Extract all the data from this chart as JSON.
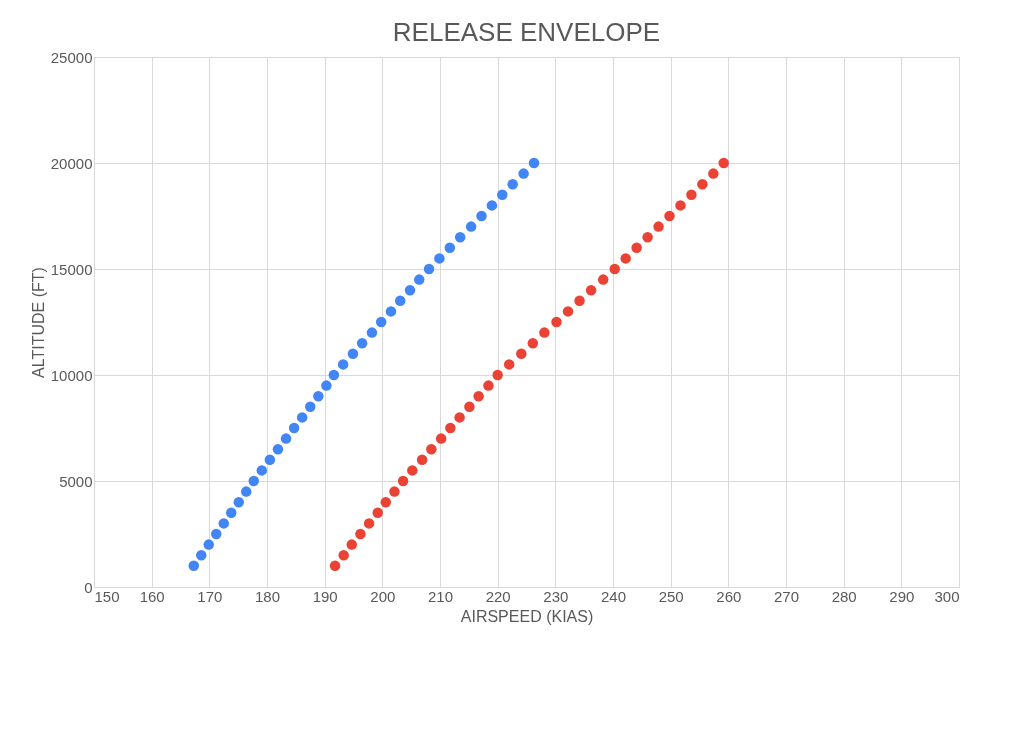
{
  "chart_data": {
    "type": "scatter",
    "title": "RELEASE ENVELOPE",
    "xlabel": "AIRSPEED (KIAS)",
    "ylabel": "ALTITUDE (FT)",
    "xlim": [
      150,
      300
    ],
    "xticks": [
      150,
      160,
      170,
      180,
      190,
      200,
      210,
      220,
      230,
      240,
      250,
      260,
      270,
      280,
      290,
      300
    ],
    "ylim": [
      0,
      25000
    ],
    "yticks": [
      0,
      5000,
      10000,
      15000,
      20000,
      25000
    ],
    "grid": true,
    "marker": "circle",
    "legend": false,
    "series": [
      {
        "color": "#4285f4",
        "x": [
          167.3,
          168.6,
          169.9,
          171.2,
          172.5,
          173.8,
          175.1,
          176.4,
          177.7,
          179.1,
          180.5,
          181.9,
          183.3,
          184.7,
          186.1,
          187.5,
          188.9,
          190.3,
          191.6,
          193.2,
          194.9,
          196.5,
          198.2,
          199.8,
          201.5,
          203.1,
          204.8,
          206.4,
          208.1,
          209.9,
          211.7,
          213.5,
          215.4,
          217.2,
          219.0,
          220.8,
          222.6,
          224.5,
          226.3
        ],
        "values": [
          1000,
          1500,
          2000,
          2500,
          3000,
          3500,
          4000,
          4500,
          5000,
          5500,
          6000,
          6500,
          7000,
          7500,
          8000,
          8500,
          9000,
          9500,
          10000,
          10500,
          11000,
          11500,
          12000,
          12500,
          13000,
          13500,
          14000,
          14500,
          15000,
          15500,
          16000,
          16500,
          17000,
          17500,
          18000,
          18500,
          19000,
          19500,
          20000
        ]
      },
      {
        "color": "#ea4335",
        "x": [
          191.8,
          193.3,
          194.7,
          196.2,
          197.7,
          199.2,
          200.6,
          202.1,
          203.6,
          205.2,
          206.9,
          208.5,
          210.2,
          211.8,
          213.4,
          215.1,
          216.7,
          218.4,
          220.0,
          222.0,
          224.1,
          226.1,
          228.1,
          230.2,
          232.2,
          234.2,
          236.2,
          238.3,
          240.3,
          242.2,
          244.1,
          246.0,
          247.9,
          249.8,
          251.7,
          253.6,
          255.5,
          257.4,
          259.2
        ],
        "values": [
          1000,
          1500,
          2000,
          2500,
          3000,
          3500,
          4000,
          4500,
          5000,
          5500,
          6000,
          6500,
          7000,
          7500,
          8000,
          8500,
          9000,
          9500,
          10000,
          10500,
          11000,
          11500,
          12000,
          12500,
          13000,
          13500,
          14000,
          14500,
          15000,
          15500,
          16000,
          16500,
          17000,
          17500,
          18000,
          18500,
          19000,
          19500,
          20000
        ]
      }
    ]
  }
}
